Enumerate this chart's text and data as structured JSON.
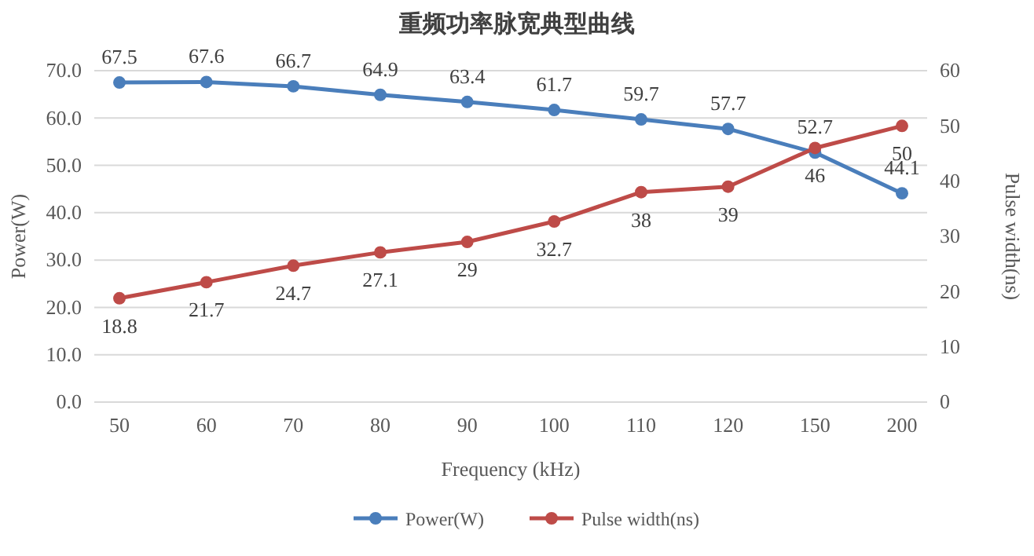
{
  "chart_data": {
    "type": "line",
    "title": "重频功率脉宽典型曲线",
    "xlabel": "Frequency (kHz)",
    "ylabel": "Power(W)",
    "y2label": "Pulse width(ns)",
    "categories": [
      "50",
      "60",
      "70",
      "80",
      "90",
      "100",
      "110",
      "120",
      "150",
      "200"
    ],
    "series": [
      {
        "name": "Power(W)",
        "color": "#4a7ebb",
        "values": [
          67.5,
          67.6,
          66.7,
          64.9,
          63.4,
          61.7,
          59.7,
          57.7,
          52.7,
          44.1
        ]
      },
      {
        "name": "Pulse width(ns)",
        "color": "#be4b48",
        "axis": "y2",
        "values": [
          18.8,
          21.7,
          24.7,
          27.1,
          29,
          32.7,
          38,
          39,
          46,
          50
        ]
      }
    ],
    "ylim": [
      0,
      70
    ],
    "yticks": [
      {
        "value": 0,
        "label": "0.0"
      },
      {
        "value": 10,
        "label": "10.0"
      },
      {
        "value": 20,
        "label": "20.0"
      },
      {
        "value": 30,
        "label": "30.0"
      },
      {
        "value": 40,
        "label": "40.0"
      },
      {
        "value": 50,
        "label": "50.0"
      },
      {
        "value": 60,
        "label": "60.0"
      },
      {
        "value": 70,
        "label": "70.0"
      }
    ],
    "y2lim": [
      0,
      60
    ],
    "y2ticks": [
      0,
      10,
      20,
      30,
      40,
      50,
      60
    ],
    "grid": "y",
    "legend": "bottom",
    "marker": "circle",
    "line_style": "solid",
    "data_labels": true
  }
}
